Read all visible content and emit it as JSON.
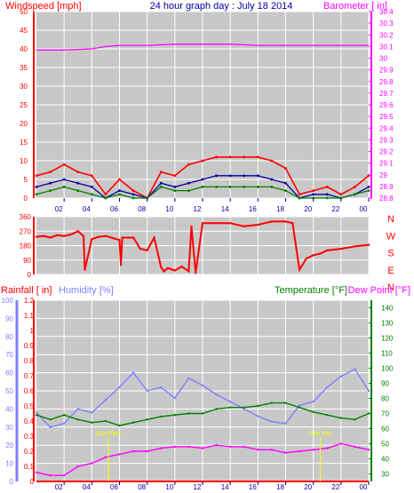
{
  "title": "24 hour graph day : July 18 2014",
  "colors": {
    "background": "#ffffff",
    "plot_bg": "#c8c8c8",
    "grid": "#ffffff",
    "red": "#ff0000",
    "magenta": "#ff00ff",
    "blue": "#8080ff",
    "dark_blue": "#0000a0",
    "green": "#008000",
    "yellow": "#ffff00",
    "title": "#0000a0"
  },
  "x_ticks": [
    "02",
    "04",
    "06",
    "08",
    "10",
    "12",
    "14",
    "16",
    "18",
    "20",
    "22",
    "00"
  ],
  "chart_data": [
    {
      "type": "line",
      "panel": "wind-barometer",
      "left_axis_label": "Windspeed [mph]",
      "right_axis_label": "Barometer [ in]",
      "left_ticks": [
        "0",
        "5",
        "10",
        "15",
        "20",
        "25",
        "30",
        "35",
        "40",
        "45",
        "50"
      ],
      "right_ticks": [
        "28.8",
        "28.9",
        "29",
        "29.1",
        "29.2",
        "29.3",
        "29.4",
        "29.5",
        "29.6",
        "29.7",
        "29.8",
        "29.9",
        "30",
        "30.1",
        "30.2",
        "30.3",
        "30.4"
      ],
      "ylim_left": [
        0,
        50
      ],
      "ylim_right": [
        28.8,
        30.4
      ],
      "grid": true,
      "series": [
        {
          "key": "gust",
          "color": "red",
          "axis": "left",
          "x": [
            0,
            1,
            2,
            3,
            4,
            5,
            6,
            7,
            8,
            9,
            10,
            11,
            12,
            13,
            14,
            15,
            16,
            17,
            18,
            19,
            20,
            21,
            22,
            23,
            24
          ],
          "values": [
            6,
            7,
            9,
            7,
            6,
            1,
            5,
            2,
            0,
            7,
            6,
            9,
            10,
            11,
            11,
            11,
            11,
            10,
            8,
            1,
            2,
            3,
            1,
            3,
            6
          ]
        },
        {
          "key": "wind",
          "color": "dark_blue",
          "axis": "left",
          "x": [
            0,
            1,
            2,
            3,
            4,
            5,
            6,
            7,
            8,
            9,
            10,
            11,
            12,
            13,
            14,
            15,
            16,
            17,
            18,
            19,
            20,
            21,
            22,
            23,
            24
          ],
          "values": [
            3,
            4,
            5,
            4,
            3,
            0,
            2,
            1,
            0,
            4,
            3,
            4,
            5,
            6,
            6,
            6,
            6,
            5,
            4,
            0,
            1,
            1,
            0,
            1,
            3
          ]
        },
        {
          "key": "avg",
          "color": "green",
          "axis": "left",
          "x": [
            0,
            1,
            2,
            3,
            4,
            5,
            6,
            7,
            8,
            9,
            10,
            11,
            12,
            13,
            14,
            15,
            16,
            17,
            18,
            19,
            20,
            21,
            22,
            23,
            24
          ],
          "values": [
            1,
            2,
            3,
            2,
            1,
            0,
            1,
            0,
            0,
            3,
            2,
            2,
            3,
            3,
            3,
            3,
            3,
            3,
            2,
            0,
            0,
            0,
            0,
            1,
            2
          ]
        },
        {
          "key": "barometer",
          "color": "magenta",
          "axis": "right",
          "x": [
            0,
            2,
            4,
            5,
            6,
            8,
            10,
            12,
            14,
            16,
            18,
            20,
            22,
            24
          ],
          "values": [
            30.07,
            30.07,
            30.08,
            30.1,
            30.11,
            30.11,
            30.12,
            30.12,
            30.12,
            30.11,
            30.11,
            30.11,
            30.11,
            30.11
          ]
        }
      ]
    },
    {
      "type": "line",
      "panel": "wind-direction",
      "left_ticks": [
        "0",
        "90",
        "180",
        "270",
        "360"
      ],
      "right_labels": [
        "N",
        "W",
        "S",
        "E",
        "N"
      ],
      "ylim": [
        0,
        360
      ],
      "grid": true,
      "series": [
        {
          "key": "direction",
          "color": "red",
          "x": [
            0,
            0.5,
            1,
            1.5,
            2,
            2.5,
            3,
            3.4,
            3.5,
            4,
            4.5,
            5,
            6,
            6.1,
            6.2,
            7,
            7.5,
            8,
            8.5,
            9,
            9.2,
            9.5,
            10,
            10.5,
            11,
            11.2,
            11.5,
            12,
            12.5,
            13,
            14,
            15,
            16,
            17,
            18,
            18.5,
            19,
            19.5,
            20,
            20.5,
            21,
            22,
            23,
            24
          ],
          "values": [
            235,
            240,
            230,
            245,
            240,
            250,
            270,
            240,
            30,
            220,
            235,
            240,
            215,
            60,
            230,
            230,
            160,
            150,
            230,
            45,
            20,
            40,
            25,
            50,
            20,
            300,
            10,
            320,
            320,
            320,
            320,
            300,
            310,
            330,
            330,
            320,
            30,
            100,
            120,
            130,
            150,
            160,
            175,
            185
          ]
        }
      ]
    },
    {
      "type": "line",
      "panel": "rain-humidity-temperature",
      "left_axis_label_rain": "Rainfall [ in]",
      "left_axis_label_humidity": "Humidity [%]",
      "right_axis_label_temp": "Temperature [°F]",
      "right_axis_label_dew": "Dew Point [°F]",
      "rain_ticks": [
        "0",
        "0.1",
        "0.2",
        "0.3",
        "0.4",
        "0.5",
        "0.6",
        "0.7",
        "0.8",
        "0.9",
        "1",
        "1.1",
        "1.2"
      ],
      "humidity_ticks": [
        "0",
        "10",
        "20",
        "30",
        "40",
        "50",
        "60",
        "70",
        "80",
        "90",
        "100"
      ],
      "temp_ticks": [
        "30",
        "40",
        "50",
        "60",
        "70",
        "80",
        "90",
        "100",
        "110",
        "120",
        "130",
        "140"
      ],
      "ylim_rain": [
        0,
        1.2
      ],
      "ylim_humidity": [
        0,
        100
      ],
      "ylim_temp": [
        25,
        145
      ],
      "grid": true,
      "series": [
        {
          "key": "humidity",
          "color": "blue",
          "axis": "humidity",
          "x": [
            0,
            1,
            2,
            3,
            4,
            5,
            6,
            7,
            8,
            9,
            10,
            11,
            12,
            13,
            14,
            15,
            16,
            17,
            18,
            19,
            20,
            21,
            22,
            23,
            24
          ],
          "values": [
            38,
            30,
            32,
            40,
            38,
            45,
            52,
            60,
            50,
            52,
            46,
            57,
            53,
            48,
            44,
            40,
            36,
            33,
            32,
            42,
            44,
            52,
            58,
            62,
            50
          ]
        },
        {
          "key": "temperature",
          "color": "green",
          "axis": "temp",
          "x": [
            0,
            1,
            2,
            3,
            4,
            5,
            6,
            7,
            8,
            9,
            10,
            11,
            12,
            13,
            14,
            15,
            16,
            17,
            18,
            19,
            20,
            21,
            22,
            23,
            24
          ],
          "values": [
            69,
            66,
            69,
            66,
            64,
            65,
            62,
            64,
            66,
            68,
            69,
            70,
            70,
            73,
            74,
            74,
            75,
            77,
            77,
            74,
            71,
            69,
            67,
            66,
            70
          ]
        },
        {
          "key": "dewpoint",
          "color": "magenta",
          "axis": "temp",
          "x": [
            0,
            1,
            2,
            3,
            4,
            5,
            6,
            7,
            8,
            9,
            10,
            11,
            12,
            13,
            14,
            15,
            16,
            17,
            18,
            19,
            20,
            21,
            22,
            23,
            24
          ],
          "values": [
            31,
            29,
            29,
            35,
            37,
            41,
            43,
            45,
            45,
            47,
            48,
            48,
            47,
            49,
            48,
            48,
            46,
            46,
            44,
            45,
            46,
            47,
            50,
            48,
            46
          ]
        },
        {
          "key": "rain",
          "color": "red",
          "axis": "rain",
          "x": [
            0,
            24
          ],
          "values": [
            0,
            0
          ]
        }
      ],
      "annotations": [
        {
          "text": "Sun Rise",
          "x": 5.2,
          "color": "yellow"
        },
        {
          "text": "Sun Set",
          "x": 20.5,
          "color": "yellow"
        }
      ]
    }
  ]
}
